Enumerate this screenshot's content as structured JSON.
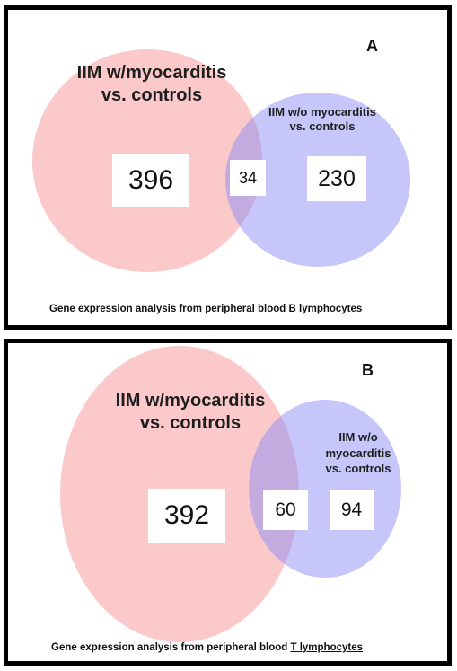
{
  "colors": {
    "left_circle": "#f79393",
    "right_circle": "#8e8ef5",
    "border": "#000000"
  },
  "panel_a": {
    "letter": "A",
    "left_set_label": [
      "IIM w/myocarditis",
      "vs. controls"
    ],
    "right_set_label": [
      "IIM w/o myocarditis",
      "vs. controls"
    ],
    "left_only": "396",
    "overlap": "34",
    "right_only": "230",
    "caption_prefix": "Gene expression analysis from peripheral blood ",
    "caption_cell_type": "B lymphocytes"
  },
  "panel_b": {
    "letter": "B",
    "left_set_label": [
      "IIM w/myocarditis",
      "vs. controls"
    ],
    "right_set_label": [
      "IIM w/o",
      "myocarditis",
      "vs. controls"
    ],
    "left_only": "392",
    "overlap": "60",
    "right_only": "94",
    "caption_prefix": "Gene expression analysis from peripheral blood ",
    "caption_cell_type": "T lymphocytes"
  }
}
